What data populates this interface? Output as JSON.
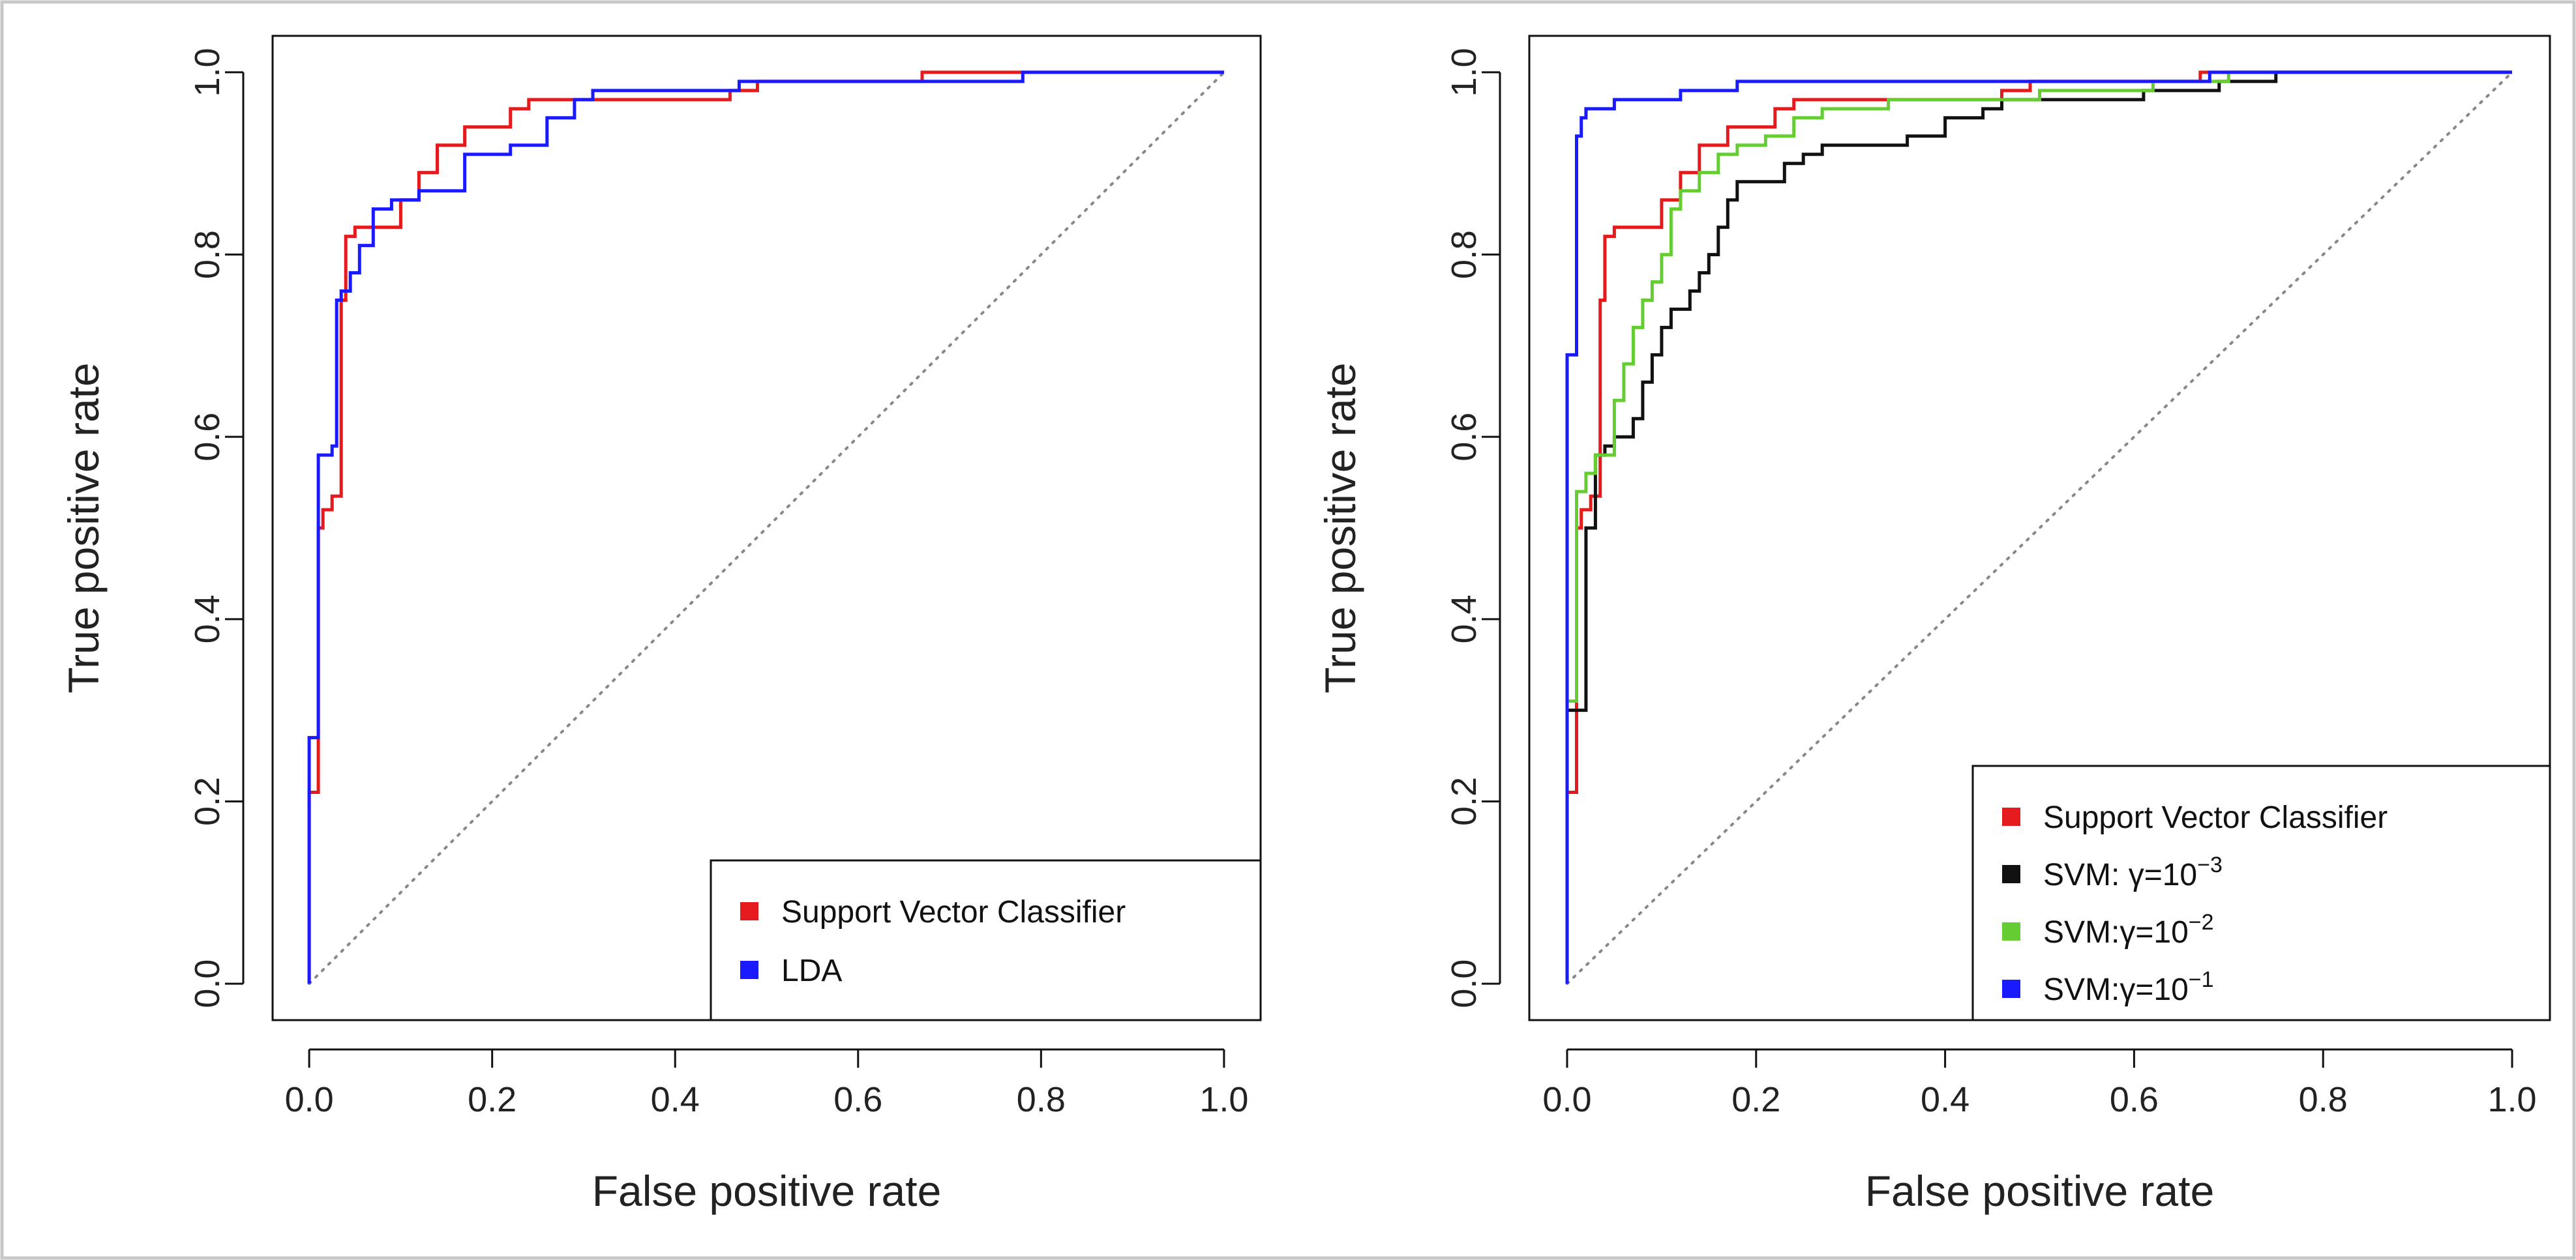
{
  "chart_data": [
    {
      "type": "line",
      "title": "",
      "xlabel": "False positive rate",
      "ylabel": "True positive rate",
      "xlim": [
        0,
        1
      ],
      "ylim": [
        0,
        1
      ],
      "xticks": [
        "0.0",
        "0.2",
        "0.4",
        "0.6",
        "0.8",
        "1.0"
      ],
      "yticks": [
        "0.0",
        "0.2",
        "0.4",
        "0.6",
        "0.8",
        "1.0"
      ],
      "grid": false,
      "reference_line": "diagonal dotted",
      "legend_position": "bottom-right",
      "series": [
        {
          "name": "Support Vector Classifier",
          "color": "#e41a1c",
          "points": [
            [
              0,
              0
            ],
            [
              0,
              0.21
            ],
            [
              0.01,
              0.21
            ],
            [
              0.01,
              0.5
            ],
            [
              0.015,
              0.5
            ],
            [
              0.015,
              0.52
            ],
            [
              0.025,
              0.52
            ],
            [
              0.025,
              0.535
            ],
            [
              0.035,
              0.535
            ],
            [
              0.035,
              0.75
            ],
            [
              0.04,
              0.75
            ],
            [
              0.04,
              0.82
            ],
            [
              0.05,
              0.82
            ],
            [
              0.05,
              0.83
            ],
            [
              0.1,
              0.83
            ],
            [
              0.1,
              0.86
            ],
            [
              0.12,
              0.86
            ],
            [
              0.12,
              0.89
            ],
            [
              0.14,
              0.89
            ],
            [
              0.14,
              0.92
            ],
            [
              0.17,
              0.92
            ],
            [
              0.17,
              0.94
            ],
            [
              0.22,
              0.94
            ],
            [
              0.22,
              0.96
            ],
            [
              0.24,
              0.96
            ],
            [
              0.24,
              0.97
            ],
            [
              0.46,
              0.97
            ],
            [
              0.46,
              0.98
            ],
            [
              0.49,
              0.98
            ],
            [
              0.49,
              0.99
            ],
            [
              0.67,
              0.99
            ],
            [
              0.67,
              1.0
            ],
            [
              1.0,
              1.0
            ]
          ]
        },
        {
          "name": "LDA",
          "color": "#1a1aff",
          "points": [
            [
              0,
              0
            ],
            [
              0,
              0.27
            ],
            [
              0.01,
              0.27
            ],
            [
              0.01,
              0.58
            ],
            [
              0.025,
              0.58
            ],
            [
              0.025,
              0.59
            ],
            [
              0.03,
              0.59
            ],
            [
              0.03,
              0.75
            ],
            [
              0.035,
              0.75
            ],
            [
              0.035,
              0.76
            ],
            [
              0.045,
              0.76
            ],
            [
              0.045,
              0.78
            ],
            [
              0.055,
              0.78
            ],
            [
              0.055,
              0.81
            ],
            [
              0.07,
              0.81
            ],
            [
              0.07,
              0.85
            ],
            [
              0.09,
              0.85
            ],
            [
              0.09,
              0.86
            ],
            [
              0.12,
              0.86
            ],
            [
              0.12,
              0.87
            ],
            [
              0.17,
              0.87
            ],
            [
              0.17,
              0.91
            ],
            [
              0.22,
              0.91
            ],
            [
              0.22,
              0.92
            ],
            [
              0.26,
              0.92
            ],
            [
              0.26,
              0.95
            ],
            [
              0.29,
              0.95
            ],
            [
              0.29,
              0.97
            ],
            [
              0.31,
              0.97
            ],
            [
              0.31,
              0.98
            ],
            [
              0.47,
              0.98
            ],
            [
              0.47,
              0.99
            ],
            [
              0.78,
              0.99
            ],
            [
              0.78,
              1.0
            ],
            [
              1.0,
              1.0
            ]
          ]
        }
      ]
    },
    {
      "type": "line",
      "title": "",
      "xlabel": "False positive rate",
      "ylabel": "True positive rate",
      "xlim": [
        0,
        1
      ],
      "ylim": [
        0,
        1
      ],
      "xticks": [
        "0.0",
        "0.2",
        "0.4",
        "0.6",
        "0.8",
        "1.0"
      ],
      "yticks": [
        "0.0",
        "0.2",
        "0.4",
        "0.6",
        "0.8",
        "1.0"
      ],
      "grid": false,
      "reference_line": "diagonal dotted",
      "legend_position": "bottom-right",
      "series": [
        {
          "name": "Support Vector Classifier",
          "color": "#e41a1c",
          "points": [
            [
              0,
              0
            ],
            [
              0,
              0.21
            ],
            [
              0.01,
              0.21
            ],
            [
              0.01,
              0.5
            ],
            [
              0.015,
              0.5
            ],
            [
              0.015,
              0.52
            ],
            [
              0.025,
              0.52
            ],
            [
              0.025,
              0.535
            ],
            [
              0.035,
              0.535
            ],
            [
              0.035,
              0.75
            ],
            [
              0.04,
              0.75
            ],
            [
              0.04,
              0.82
            ],
            [
              0.05,
              0.82
            ],
            [
              0.05,
              0.83
            ],
            [
              0.1,
              0.83
            ],
            [
              0.1,
              0.86
            ],
            [
              0.12,
              0.86
            ],
            [
              0.12,
              0.89
            ],
            [
              0.14,
              0.89
            ],
            [
              0.14,
              0.92
            ],
            [
              0.17,
              0.92
            ],
            [
              0.17,
              0.94
            ],
            [
              0.22,
              0.94
            ],
            [
              0.22,
              0.96
            ],
            [
              0.24,
              0.96
            ],
            [
              0.24,
              0.97
            ],
            [
              0.46,
              0.97
            ],
            [
              0.46,
              0.98
            ],
            [
              0.49,
              0.98
            ],
            [
              0.49,
              0.99
            ],
            [
              0.67,
              0.99
            ],
            [
              0.67,
              1.0
            ],
            [
              1.0,
              1.0
            ]
          ]
        },
        {
          "name_prefix": "SVM: ",
          "name_base": "γ=10",
          "name_exp": "−3",
          "color": "#111111",
          "points": [
            [
              0,
              0
            ],
            [
              0,
              0.3
            ],
            [
              0.02,
              0.3
            ],
            [
              0.02,
              0.5
            ],
            [
              0.03,
              0.5
            ],
            [
              0.03,
              0.58
            ],
            [
              0.04,
              0.58
            ],
            [
              0.04,
              0.59
            ],
            [
              0.05,
              0.59
            ],
            [
              0.05,
              0.6
            ],
            [
              0.07,
              0.6
            ],
            [
              0.07,
              0.62
            ],
            [
              0.08,
              0.62
            ],
            [
              0.08,
              0.66
            ],
            [
              0.09,
              0.66
            ],
            [
              0.09,
              0.69
            ],
            [
              0.1,
              0.69
            ],
            [
              0.1,
              0.72
            ],
            [
              0.11,
              0.72
            ],
            [
              0.11,
              0.74
            ],
            [
              0.13,
              0.74
            ],
            [
              0.13,
              0.76
            ],
            [
              0.14,
              0.76
            ],
            [
              0.14,
              0.78
            ],
            [
              0.15,
              0.78
            ],
            [
              0.15,
              0.8
            ],
            [
              0.16,
              0.8
            ],
            [
              0.16,
              0.83
            ],
            [
              0.17,
              0.83
            ],
            [
              0.17,
              0.86
            ],
            [
              0.18,
              0.86
            ],
            [
              0.18,
              0.88
            ],
            [
              0.23,
              0.88
            ],
            [
              0.23,
              0.9
            ],
            [
              0.25,
              0.9
            ],
            [
              0.25,
              0.91
            ],
            [
              0.27,
              0.91
            ],
            [
              0.27,
              0.92
            ],
            [
              0.36,
              0.92
            ],
            [
              0.36,
              0.93
            ],
            [
              0.4,
              0.93
            ],
            [
              0.4,
              0.95
            ],
            [
              0.44,
              0.95
            ],
            [
              0.44,
              0.96
            ],
            [
              0.46,
              0.96
            ],
            [
              0.46,
              0.97
            ],
            [
              0.61,
              0.97
            ],
            [
              0.61,
              0.98
            ],
            [
              0.69,
              0.98
            ],
            [
              0.69,
              0.99
            ],
            [
              0.75,
              0.99
            ],
            [
              0.75,
              1.0
            ],
            [
              1.0,
              1.0
            ]
          ]
        },
        {
          "name_prefix": "SVM:",
          "name_base": "γ=10",
          "name_exp": "−2",
          "color": "#66cc33",
          "points": [
            [
              0,
              0
            ],
            [
              0,
              0.31
            ],
            [
              0.01,
              0.31
            ],
            [
              0.01,
              0.54
            ],
            [
              0.02,
              0.54
            ],
            [
              0.02,
              0.56
            ],
            [
              0.03,
              0.56
            ],
            [
              0.03,
              0.58
            ],
            [
              0.05,
              0.58
            ],
            [
              0.05,
              0.64
            ],
            [
              0.06,
              0.64
            ],
            [
              0.06,
              0.68
            ],
            [
              0.07,
              0.68
            ],
            [
              0.07,
              0.72
            ],
            [
              0.08,
              0.72
            ],
            [
              0.08,
              0.75
            ],
            [
              0.09,
              0.75
            ],
            [
              0.09,
              0.77
            ],
            [
              0.1,
              0.77
            ],
            [
              0.1,
              0.8
            ],
            [
              0.11,
              0.8
            ],
            [
              0.11,
              0.85
            ],
            [
              0.12,
              0.85
            ],
            [
              0.12,
              0.87
            ],
            [
              0.14,
              0.87
            ],
            [
              0.14,
              0.89
            ],
            [
              0.16,
              0.89
            ],
            [
              0.16,
              0.91
            ],
            [
              0.18,
              0.91
            ],
            [
              0.18,
              0.92
            ],
            [
              0.21,
              0.92
            ],
            [
              0.21,
              0.93
            ],
            [
              0.24,
              0.93
            ],
            [
              0.24,
              0.95
            ],
            [
              0.27,
              0.95
            ],
            [
              0.27,
              0.96
            ],
            [
              0.34,
              0.96
            ],
            [
              0.34,
              0.97
            ],
            [
              0.5,
              0.97
            ],
            [
              0.5,
              0.98
            ],
            [
              0.62,
              0.98
            ],
            [
              0.62,
              0.99
            ],
            [
              0.7,
              0.99
            ],
            [
              0.7,
              1.0
            ],
            [
              1.0,
              1.0
            ]
          ]
        },
        {
          "name_prefix": "SVM:",
          "name_base": "γ=10",
          "name_exp": "−1",
          "color": "#1a1aff",
          "points": [
            [
              0,
              0
            ],
            [
              0,
              0.69
            ],
            [
              0.01,
              0.69
            ],
            [
              0.01,
              0.93
            ],
            [
              0.015,
              0.93
            ],
            [
              0.015,
              0.95
            ],
            [
              0.02,
              0.95
            ],
            [
              0.02,
              0.96
            ],
            [
              0.05,
              0.96
            ],
            [
              0.05,
              0.97
            ],
            [
              0.12,
              0.97
            ],
            [
              0.12,
              0.98
            ],
            [
              0.18,
              0.98
            ],
            [
              0.18,
              0.99
            ],
            [
              0.68,
              0.99
            ],
            [
              0.68,
              1.0
            ],
            [
              1.0,
              1.0
            ]
          ]
        }
      ]
    }
  ]
}
